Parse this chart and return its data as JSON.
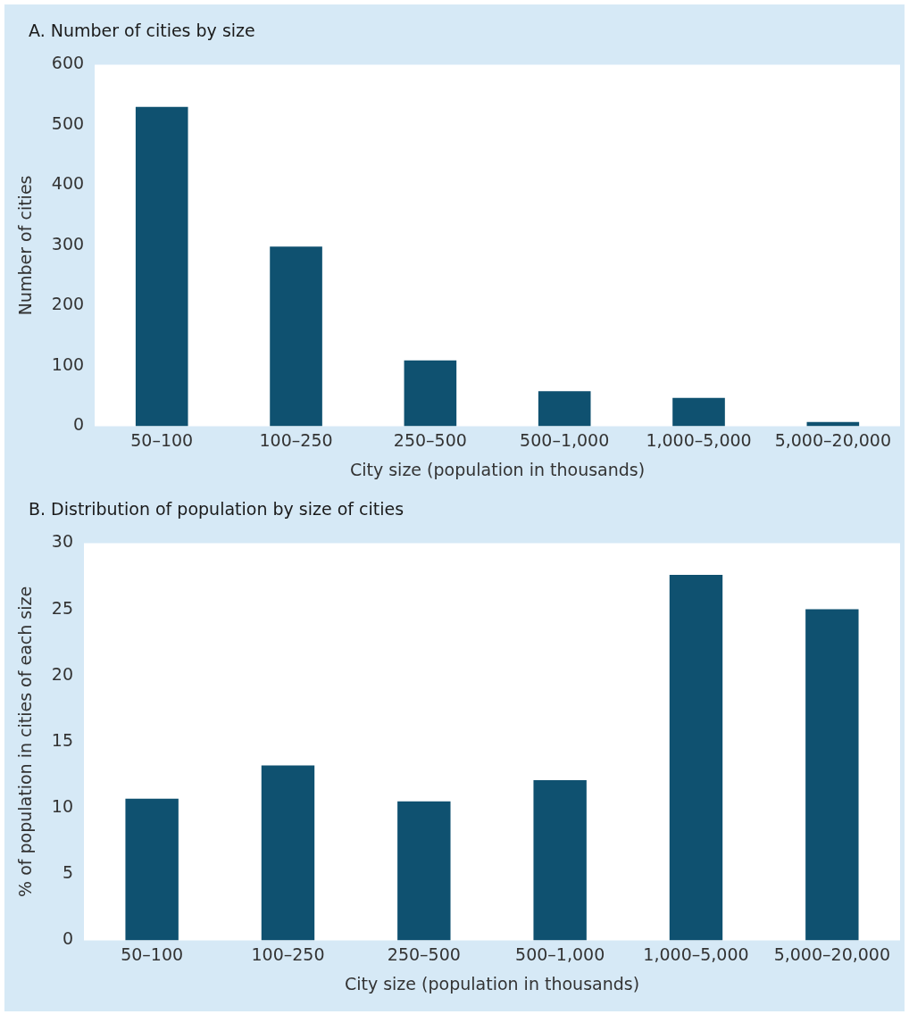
{
  "chart_data": [
    {
      "type": "bar",
      "title": "A. Number of cities by size",
      "xlabel": "City size (population in thousands)",
      "ylabel": "Number of cities",
      "categories": [
        "50–100",
        "100–250",
        "250–500",
        "500–1,000",
        "1,000–5,000",
        "5,000–20,000"
      ],
      "values": [
        530,
        298,
        109,
        58,
        47,
        7
      ],
      "color": "#0f5170",
      "ylim": [
        0,
        600
      ],
      "yticks": [
        0,
        100,
        200,
        300,
        400,
        500,
        600
      ],
      "grid": false,
      "legend": false
    },
    {
      "type": "bar",
      "title": "B. Distribution of population by size of cities",
      "xlabel": "City size (population in thousands)",
      "ylabel": "% of population in cities of each size",
      "categories": [
        "50–100",
        "100–250",
        "250–500",
        "500–1,000",
        "1,000–5,000",
        "5,000–20,000"
      ],
      "values": [
        10.7,
        13.2,
        10.5,
        12.1,
        27.6,
        25.0
      ],
      "color": "#0f5170",
      "ylim": [
        0,
        30
      ],
      "yticks": [
        0,
        5,
        10,
        15,
        20,
        25,
        30
      ],
      "grid": false,
      "legend": false
    }
  ]
}
